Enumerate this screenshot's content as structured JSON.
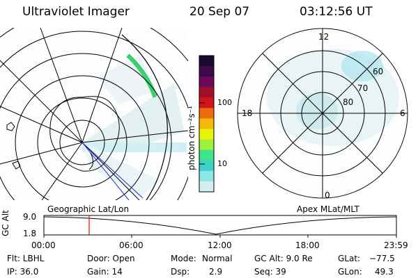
{
  "header": {
    "instrument": "Ultraviolet Imager",
    "date": "20 Sep 07",
    "time": "03:12:56 UT"
  },
  "colorbar": {
    "unit_label": "photon cm⁻²s⁻¹",
    "ticks": [
      "100",
      "10"
    ],
    "colors": [
      "#1a0a2e",
      "#3d0a4a",
      "#6a0a5a",
      "#a0102a",
      "#d2141e",
      "#f06a10",
      "#f5b80a",
      "#e8f20a",
      "#9ef03c",
      "#3ce68a",
      "#3cd2c8",
      "#8ce6e8",
      "#d2f0f0"
    ]
  },
  "left_panel": {
    "label": "Geographic Lat/Lon"
  },
  "right_panel": {
    "label": "Apex MLat/MLT",
    "mlt_labels": {
      "top": "12",
      "left": "18",
      "right": "6",
      "bottom": "0"
    },
    "mlat_labels": [
      "60",
      "70",
      "80"
    ]
  },
  "timeline": {
    "axis_label": "GC Alt",
    "y_ticks": [
      "9.0",
      "1.8"
    ],
    "x_ticks": [
      "00:00",
      "06:00",
      "12:00",
      "18:00",
      "23:59"
    ],
    "marker_color": "#ff0000"
  },
  "status": {
    "flt": "Flt: LBHL",
    "ip": "IP: 36.0",
    "door": "Door: Open",
    "gain": "Gain: 14",
    "mode_label": "Mode:",
    "mode_value": "Normal",
    "dsp_label": "Dsp:",
    "dsp_value": "2.9",
    "gcalt": "GC Alt: 9.0 Re",
    "seq": "Seq: 39",
    "glat_label": "GLat:",
    "glat_value": "−77.5",
    "glon_label": "GLon:",
    "glon_value": "49.3"
  }
}
